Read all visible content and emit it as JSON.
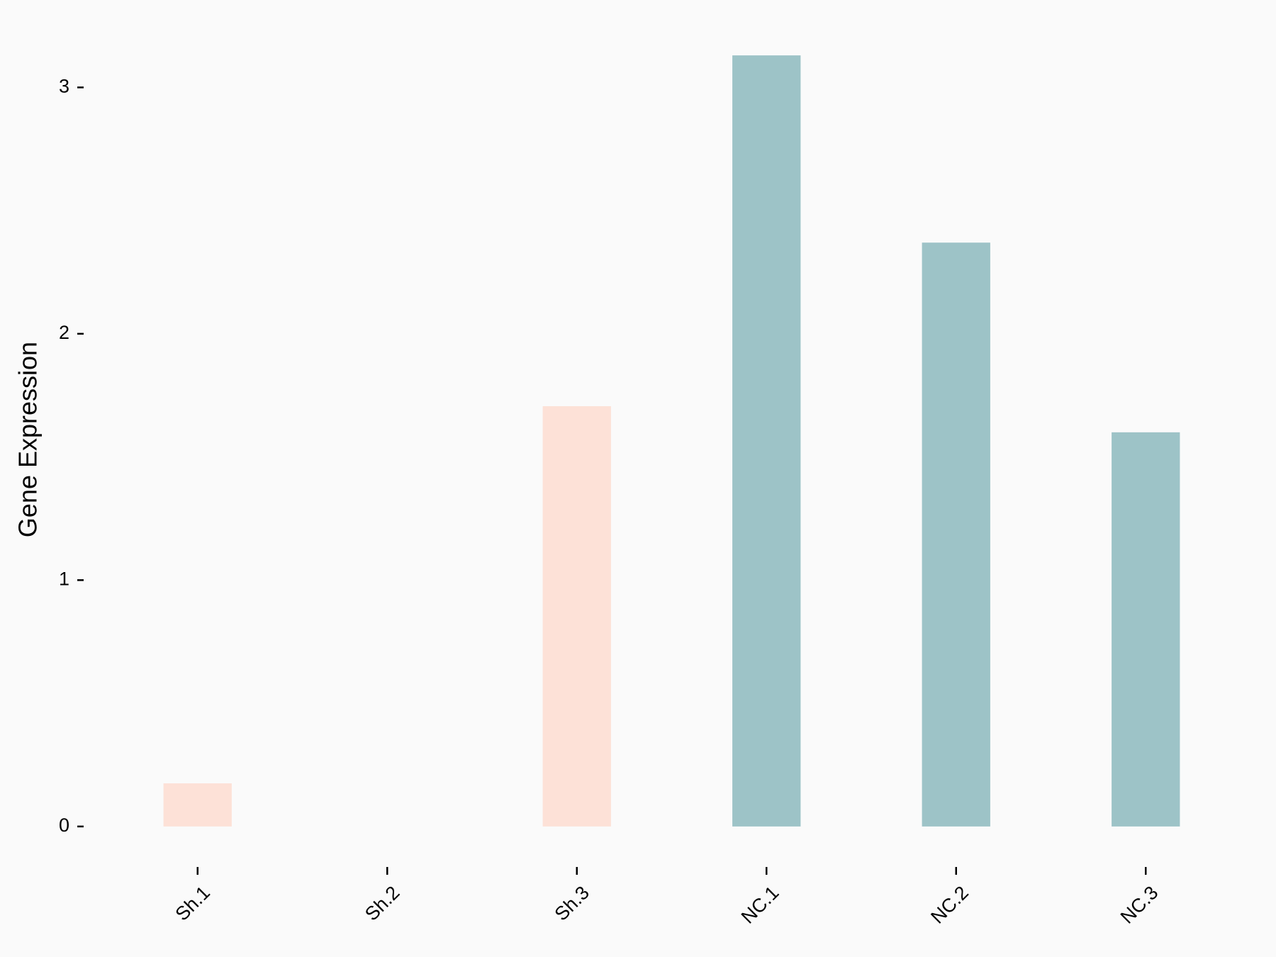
{
  "chart_data": {
    "type": "bar",
    "y_label": "Gene Expression",
    "categories": [
      "Sh.1",
      "Sh.2",
      "Sh.3",
      "NC.1",
      "NC.2",
      "NC.3"
    ],
    "values": [
      0.175,
      0,
      1.706,
      3.13,
      2.37,
      1.6
    ],
    "colors": [
      "#fde1d7",
      "#fde1d7",
      "#fde1d7",
      "#9dc3c7",
      "#9dc3c7",
      "#9dc3c7"
    ],
    "ylim": [
      -0.15,
      3.28
    ],
    "yticks": [
      0,
      1,
      2,
      3
    ]
  }
}
